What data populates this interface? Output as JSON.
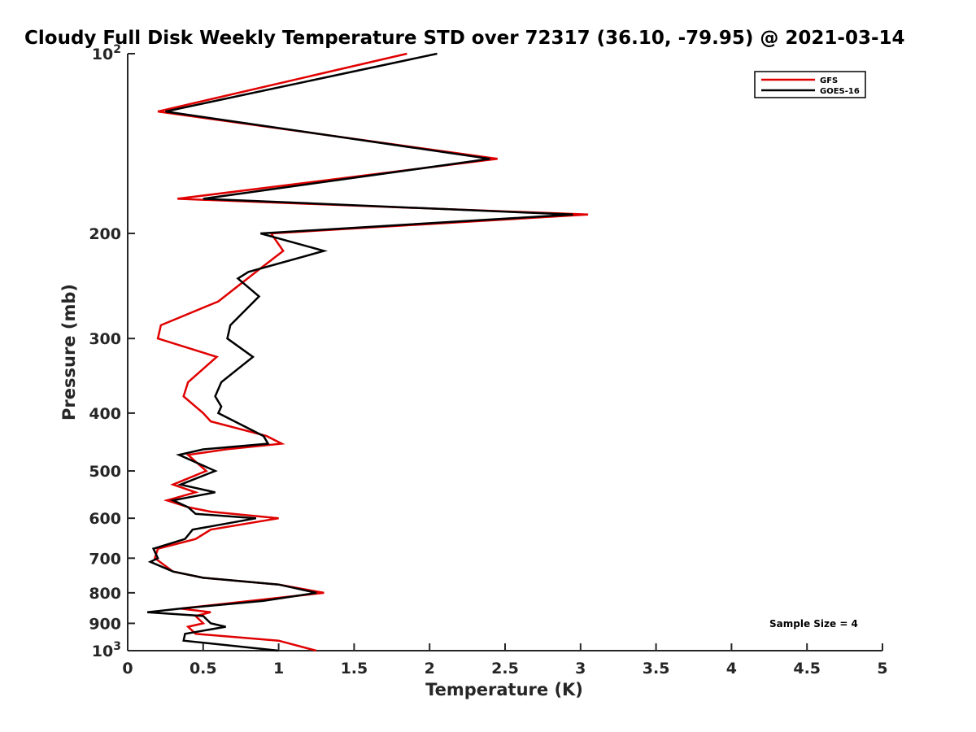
{
  "chart_data": {
    "type": "line",
    "title": "Cloudy Full Disk Weekly Temperature STD over 72317 (36.10, -79.95) @ 2021-03-14",
    "xlabel": "Temperature (K)",
    "ylabel": "Pressure (mb)",
    "xlim": [
      0,
      5
    ],
    "ylim": [
      100,
      1000
    ],
    "y_scale": "log",
    "y_reversed": true,
    "x_ticks": [
      "0",
      "0.5",
      "1",
      "1.5",
      "2",
      "2.5",
      "3",
      "3.5",
      "4",
      "4.5",
      "5"
    ],
    "y_ticks": [
      {
        "value": 100,
        "base": "10",
        "exp": "2"
      },
      {
        "value": 200,
        "label": "200"
      },
      {
        "value": 300,
        "label": "300"
      },
      {
        "value": 400,
        "label": "400"
      },
      {
        "value": 500,
        "label": "500"
      },
      {
        "value": 600,
        "label": "600"
      },
      {
        "value": 700,
        "label": "700"
      },
      {
        "value": 800,
        "label": "800"
      },
      {
        "value": 900,
        "label": "900"
      },
      {
        "value": 1000,
        "base": "10",
        "exp": "3"
      }
    ],
    "grid": false,
    "legend_position": "top-right",
    "annotation": "Sample Size = 4",
    "series": [
      {
        "name": "GFS",
        "color": "#e00000",
        "points": [
          [
            1.85,
            100
          ],
          [
            0.2,
            125
          ],
          [
            2.45,
            150
          ],
          [
            0.33,
            175
          ],
          [
            3.05,
            186
          ],
          [
            0.95,
            200
          ],
          [
            1.03,
            214
          ],
          [
            0.85,
            232
          ],
          [
            0.6,
            260
          ],
          [
            0.22,
            285
          ],
          [
            0.2,
            300
          ],
          [
            0.59,
            322
          ],
          [
            0.4,
            355
          ],
          [
            0.37,
            375
          ],
          [
            0.5,
            400
          ],
          [
            0.55,
            413
          ],
          [
            0.92,
            437
          ],
          [
            1.02,
            450
          ],
          [
            0.65,
            460
          ],
          [
            0.4,
            470
          ],
          [
            0.52,
            500
          ],
          [
            0.3,
            527
          ],
          [
            0.45,
            543
          ],
          [
            0.26,
            560
          ],
          [
            0.4,
            575
          ],
          [
            0.55,
            585
          ],
          [
            1.0,
            600
          ],
          [
            0.55,
            627
          ],
          [
            0.45,
            650
          ],
          [
            0.2,
            675
          ],
          [
            0.18,
            700
          ],
          [
            0.3,
            737
          ],
          [
            0.5,
            755
          ],
          [
            1.0,
            775
          ],
          [
            1.3,
            800
          ],
          [
            0.35,
            850
          ],
          [
            0.55,
            862
          ],
          [
            0.45,
            875
          ],
          [
            0.5,
            900
          ],
          [
            0.4,
            912
          ],
          [
            0.45,
            937
          ],
          [
            1.0,
            962
          ],
          [
            1.25,
            1000
          ]
        ]
      },
      {
        "name": "GOES-16",
        "color": "#000000",
        "points": [
          [
            2.05,
            100
          ],
          [
            0.25,
            125
          ],
          [
            2.4,
            150
          ],
          [
            0.5,
            175
          ],
          [
            2.95,
            186
          ],
          [
            0.88,
            200
          ],
          [
            1.3,
            214
          ],
          [
            0.8,
            232
          ],
          [
            0.73,
            238
          ],
          [
            0.87,
            255
          ],
          [
            0.68,
            285
          ],
          [
            0.66,
            300
          ],
          [
            0.83,
            322
          ],
          [
            0.62,
            355
          ],
          [
            0.58,
            375
          ],
          [
            0.62,
            390
          ],
          [
            0.6,
            400
          ],
          [
            0.9,
            437
          ],
          [
            0.93,
            450
          ],
          [
            0.5,
            460
          ],
          [
            0.34,
            470
          ],
          [
            0.58,
            500
          ],
          [
            0.35,
            527
          ],
          [
            0.58,
            543
          ],
          [
            0.3,
            560
          ],
          [
            0.4,
            575
          ],
          [
            0.45,
            590
          ],
          [
            0.85,
            600
          ],
          [
            0.43,
            627
          ],
          [
            0.38,
            650
          ],
          [
            0.17,
            675
          ],
          [
            0.2,
            700
          ],
          [
            0.15,
            710
          ],
          [
            0.3,
            737
          ],
          [
            0.5,
            755
          ],
          [
            1.0,
            775
          ],
          [
            1.25,
            800
          ],
          [
            0.9,
            825
          ],
          [
            0.35,
            850
          ],
          [
            0.13,
            862
          ],
          [
            0.5,
            875
          ],
          [
            0.55,
            900
          ],
          [
            0.65,
            912
          ],
          [
            0.38,
            937
          ],
          [
            0.37,
            962
          ],
          [
            1.0,
            1000
          ]
        ]
      }
    ]
  }
}
